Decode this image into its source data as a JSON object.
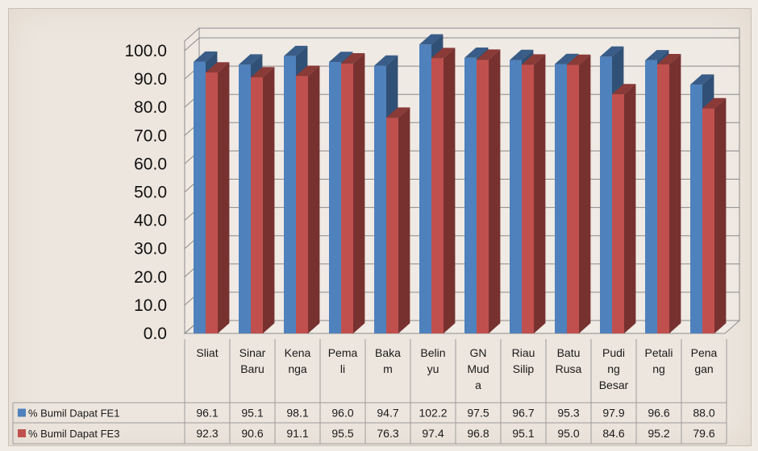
{
  "chart_data": {
    "type": "bar",
    "categories": [
      "Sliat",
      "Sinar Baru",
      "Kenanga",
      "Pemali",
      "Bakam",
      "Belinyu",
      "GN Muda",
      "Riau Silip",
      "Batu Rusa",
      "Puding Besar",
      "Petaling",
      "Penagan"
    ],
    "category_lines": [
      [
        "Sliat"
      ],
      [
        "Sinar",
        "Baru"
      ],
      [
        "Kena",
        "nga"
      ],
      [
        "Pema",
        "li"
      ],
      [
        "Baka",
        "m"
      ],
      [
        "Belin",
        "yu"
      ],
      [
        "GN",
        "Mud",
        "a"
      ],
      [
        "Riau",
        "Silip"
      ],
      [
        "Batu",
        "Rusa"
      ],
      [
        "Pudi",
        "ng",
        "Besar"
      ],
      [
        "Petali",
        "ng"
      ],
      [
        "Pena",
        "gan"
      ]
    ],
    "series": [
      {
        "name": "% Bumil Dapat FE1",
        "color": "#4f81bd",
        "values": [
          96.1,
          95.1,
          98.1,
          96.0,
          94.7,
          102.2,
          97.5,
          96.7,
          95.3,
          97.9,
          96.6,
          88.0
        ],
        "labels": [
          "96.1",
          "95.1",
          "98.1",
          "96.0",
          "94.7",
          "102.2",
          "97.5",
          "96.7",
          "95.3",
          "97.9",
          "96.6",
          "88.0"
        ]
      },
      {
        "name": "% Bumil Dapat FE3",
        "color": "#c0504d",
        "values": [
          92.3,
          90.6,
          91.1,
          95.5,
          76.3,
          97.4,
          96.8,
          95.1,
          95.0,
          84.6,
          95.2,
          79.6
        ],
        "labels": [
          "92.3",
          "90.6",
          "91.1",
          "95.5",
          "76.3",
          "97.4",
          "96.8",
          "95.1",
          "95.0",
          "84.6",
          "95.2",
          "79.6"
        ]
      }
    ],
    "y_ticks": [
      "0.0",
      "10.0",
      "20.0",
      "30.0",
      "40.0",
      "50.0",
      "60.0",
      "70.0",
      "80.0",
      "90.0",
      "100.0"
    ],
    "ylim": [
      0,
      100
    ],
    "grid": true,
    "style": "3d-clustered-bar",
    "legend": "data-table"
  }
}
